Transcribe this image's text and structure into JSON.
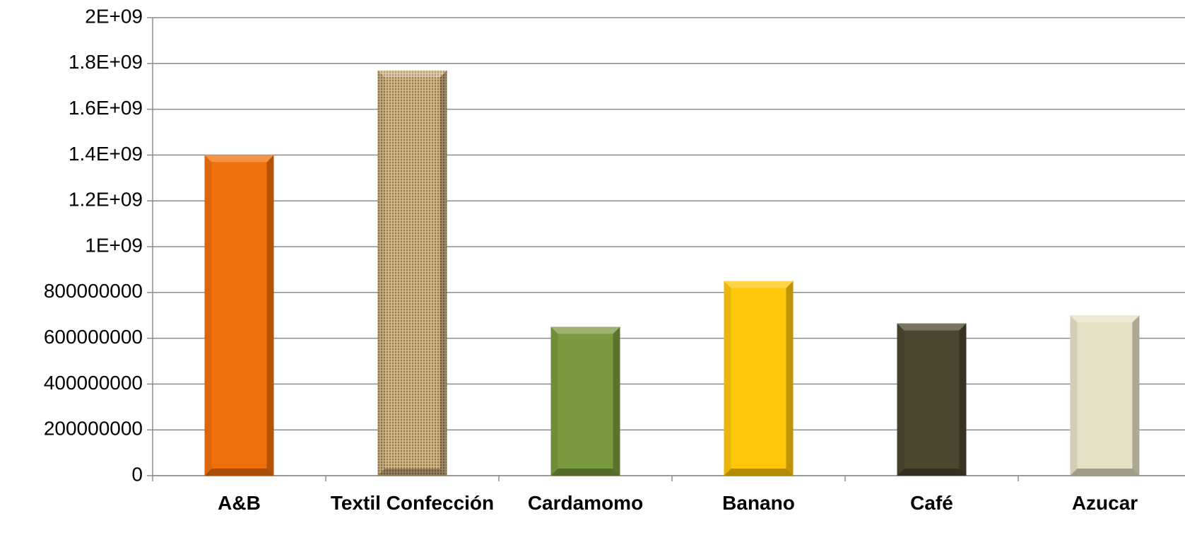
{
  "chart_data": {
    "type": "bar",
    "categories": [
      "A&B",
      "Textil Confección",
      "Cardamomo",
      "Banano",
      "Café",
      "Azucar"
    ],
    "values": [
      1400000000,
      1770000000,
      650000000,
      850000000,
      665000000,
      700000000
    ],
    "colors": [
      "#ef6f0a",
      "#c2a473",
      "#7a9a3e",
      "#ffc60a",
      "#4b4630",
      "#e6e0c6"
    ],
    "ylim": [
      0,
      2000000000
    ],
    "yticks": [
      0,
      {
        "value": 200000000,
        "label": "200000000"
      },
      {
        "value": 400000000,
        "label": "400000000"
      },
      {
        "value": 600000000,
        "label": "600000000"
      },
      800000000,
      {
        "value": 1000000000,
        "label": "1E+09"
      },
      {
        "value": 1200000000,
        "label": "1.2E+09"
      },
      {
        "value": 1400000000,
        "label": "1.4E+09"
      },
      {
        "value": 1600000000,
        "label": "1.6E+09"
      },
      {
        "value": 1800000000,
        "label": "1.8E+09"
      },
      {
        "value": 2000000000,
        "label": "2E+09"
      }
    ],
    "grid": true
  }
}
